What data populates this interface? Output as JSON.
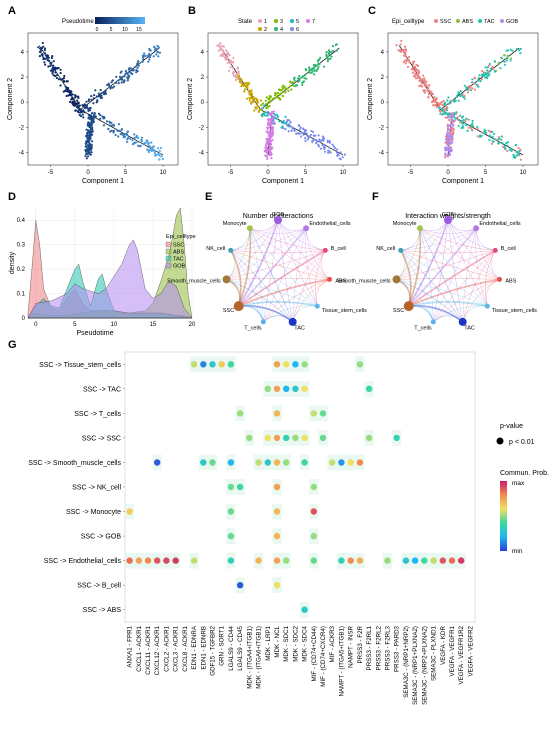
{
  "panel_labels": {
    "A": "A",
    "B": "B",
    "C": "C",
    "D": "D",
    "E": "E",
    "F": "F",
    "G": "G"
  },
  "colors": {
    "pseudotime_low": "#0a1f5c",
    "pseudotime_high": "#56b4f5",
    "state": [
      "#e9a3b1",
      "#c8a600",
      "#7fb800",
      "#2eb872",
      "#1fb6c3",
      "#7b8df0",
      "#d77ae8"
    ],
    "epi": {
      "SSC": "#f08080",
      "ABS": "#8fbc3a",
      "TAC": "#25c4b0",
      "GOB": "#b48af0"
    },
    "prob_scale": [
      "#2c3cd6",
      "#1fb6f2",
      "#3bd8a0",
      "#f0e060",
      "#f38a4e",
      "#c81d6e"
    ]
  },
  "trajectory_panels": [
    {
      "id": "A",
      "legend_title": "Pseudotime",
      "legend_ticks": [
        "0",
        "5",
        "10",
        "15"
      ],
      "xlabel": "Component 1",
      "ylabel": "Component 2",
      "xticks": [
        -5,
        0,
        5,
        10
      ],
      "yticks": [
        -4,
        -2,
        0,
        2,
        4
      ]
    },
    {
      "id": "B",
      "legend_title": "State",
      "legend_items": [
        "1",
        "3",
        "5",
        "7",
        "2",
        "4",
        "6"
      ],
      "xlabel": "Component 1",
      "ylabel": "Component 2",
      "xticks": [
        -5,
        0,
        5,
        10
      ],
      "yticks": [
        -4,
        -2,
        0,
        2,
        4
      ]
    },
    {
      "id": "C",
      "legend_title": "Epi_celltype",
      "legend_items": [
        "SSC",
        "ABS",
        "TAC",
        "GOB"
      ],
      "xlabel": "Component 1",
      "ylabel": "Component 2",
      "xticks": [
        -5,
        0,
        5,
        10
      ],
      "yticks": [
        -4,
        -2,
        0,
        2,
        4
      ]
    }
  ],
  "network_panels": [
    {
      "id": "E",
      "title": "Number of interactions"
    },
    {
      "id": "F",
      "title": "Interaction weights/strength"
    }
  ],
  "network_nodes": [
    "GOB",
    "Endothelial_cells",
    "B_cell",
    "ABS",
    "Tissue_stem_cells",
    "TAC",
    "T_cells",
    "SSC",
    "Smooth_muscle_cells",
    "NK_cell",
    "Monocyte"
  ],
  "dotplot": {
    "legend_title_p": "p-value",
    "legend_p_item": "p < 0.01",
    "legend_title_prob": "Commun. Prob.",
    "legend_max": "max",
    "legend_min": "min"
  },
  "chart_data": [
    {
      "type": "area",
      "title": "",
      "xlabel": "Pseudotime",
      "ylabel": "density",
      "xlim": [
        -1,
        20
      ],
      "ylim": [
        0,
        0.45
      ],
      "xticks": [
        0,
        5,
        10,
        15,
        20
      ],
      "yticks": [
        0,
        0.1,
        0.2,
        0.3,
        0.4
      ],
      "legend_title": "Epi_celltype",
      "legend_placement": "right",
      "series": [
        {
          "name": "SSC",
          "x": [
            -1,
            -0.5,
            0,
            0.5,
            1,
            2,
            3,
            4,
            5,
            6,
            7,
            8,
            9,
            10,
            12,
            14,
            16,
            18,
            19,
            20
          ],
          "y": [
            0.02,
            0.2,
            0.4,
            0.3,
            0.12,
            0.04,
            0.03,
            0.08,
            0.12,
            0.06,
            0.03,
            0.03,
            0.03,
            0.03,
            0.02,
            0.02,
            0.02,
            0.01,
            0.01,
            0
          ]
        },
        {
          "name": "ABS",
          "x": [
            -1,
            0,
            2,
            4,
            6,
            8,
            10,
            12,
            14,
            15,
            16,
            17,
            17.5,
            18,
            18.5,
            19,
            19.5,
            20
          ],
          "y": [
            0,
            0.02,
            0.01,
            0.01,
            0.02,
            0.03,
            0.03,
            0.02,
            0.03,
            0.06,
            0.15,
            0.25,
            0.33,
            0.42,
            0.45,
            0.3,
            0.1,
            0
          ]
        },
        {
          "name": "TAC",
          "x": [
            -1,
            0,
            1,
            2,
            3,
            4,
            5,
            5.5,
            6,
            7,
            8,
            8.5,
            9,
            10,
            11,
            12,
            14,
            16,
            18,
            20
          ],
          "y": [
            0,
            0.05,
            0.08,
            0.05,
            0.04,
            0.12,
            0.2,
            0.22,
            0.15,
            0.05,
            0.16,
            0.18,
            0.12,
            0.03,
            0.02,
            0.02,
            0.02,
            0.02,
            0.01,
            0
          ]
        },
        {
          "name": "GOB",
          "x": [
            -1,
            0,
            2,
            4,
            5,
            6,
            8,
            9,
            10,
            11,
            12,
            12.5,
            13,
            14,
            15,
            16,
            17,
            18,
            19,
            20
          ],
          "y": [
            0,
            0.06,
            0.07,
            0.1,
            0.14,
            0.12,
            0.1,
            0.12,
            0.17,
            0.22,
            0.3,
            0.32,
            0.28,
            0.12,
            0.08,
            0.1,
            0.15,
            0.13,
            0.04,
            0
          ]
        }
      ]
    },
    {
      "type": "scatter",
      "subtype": "dotplot",
      "title": "",
      "rows": [
        "SSC -> Tissue_stem_cells",
        "SSC -> TAC",
        "SSC -> T_cells",
        "SSC -> SSC",
        "SSC -> Smooth_muscle_cells",
        "SSC -> NK_cell",
        "SSC -> Monocyte",
        "SSC -> GOB",
        "SSC -> Endothelial_cells",
        "SSC -> B_cell",
        "SSC -> ABS"
      ],
      "columns": [
        "ANXA1 - FPR1",
        "CXCL1 - ACKR1",
        "CXCL11 - ACKR1",
        "CXCL12 - ACKR1",
        "CXCL2 - ACKR1",
        "CXCL3 - ACKR1",
        "CXCL8 - ACKR1",
        "EDN1 - EDNRA",
        "EDN1 - EDNRB",
        "GDF15 - TGFBR2",
        "GRN - SORT1",
        "LGALS9 - CD44",
        "LGALS9 - CD45",
        "MDK - (ITGA4+ITGB1)",
        "MDK - (ITGA6+ITGB1)",
        "MDK - LRP1",
        "MDK - NCL",
        "MDK - SDC1",
        "MDK - SDC2",
        "MDK - SDC4",
        "MIF - (CD74+CD44)",
        "MIF - (CD74+CXCR4)",
        "MIF - ACKR3",
        "NAMPT - (ITGA5+ITGB1)",
        "NAMPT - INSR",
        "PRSS3 - F2R",
        "PRSS3 - F2RL1",
        "PRSS3 - F2RL2",
        "PRSS3 - F2RL3",
        "PRSS3 - PARD3",
        "SEMA3C - (NRP1+NRP2)",
        "SEMA3C - (NRP1+PLXNA2)",
        "SEMA3C - (NRP2+PLXNA2)",
        "SEMA3C - PLXND1",
        "VEGFA - KDR",
        "VEGFA - VEGFR1",
        "VEGFA - VEGFR1R2",
        "VEGFA - VEGFR2"
      ],
      "prob_range": [
        "min",
        "max"
      ],
      "points": [
        {
          "row": 0,
          "col": 7,
          "prob": 0.55
        },
        {
          "row": 0,
          "col": 8,
          "prob": 0.12
        },
        {
          "row": 0,
          "col": 9,
          "prob": 0.3
        },
        {
          "row": 0,
          "col": 10,
          "prob": 0.65
        },
        {
          "row": 0,
          "col": 11,
          "prob": 0.4
        },
        {
          "row": 0,
          "col": 16,
          "prob": 0.75
        },
        {
          "row": 0,
          "col": 17,
          "prob": 0.6
        },
        {
          "row": 0,
          "col": 18,
          "prob": 0.2
        },
        {
          "row": 0,
          "col": 19,
          "prob": 0.5
        },
        {
          "row": 0,
          "col": 25,
          "prob": 0.5
        },
        {
          "row": 1,
          "col": 15,
          "prob": 0.5
        },
        {
          "row": 1,
          "col": 16,
          "prob": 0.75
        },
        {
          "row": 1,
          "col": 17,
          "prob": 0.2
        },
        {
          "row": 1,
          "col": 18,
          "prob": 0.3
        },
        {
          "row": 1,
          "col": 19,
          "prob": 0.6
        },
        {
          "row": 1,
          "col": 26,
          "prob": 0.4
        },
        {
          "row": 2,
          "col": 12,
          "prob": 0.5
        },
        {
          "row": 2,
          "col": 16,
          "prob": 0.7
        },
        {
          "row": 2,
          "col": 20,
          "prob": 0.55
        },
        {
          "row": 2,
          "col": 21,
          "prob": 0.45
        },
        {
          "row": 3,
          "col": 13,
          "prob": 0.5
        },
        {
          "row": 3,
          "col": 15,
          "prob": 0.6
        },
        {
          "row": 3,
          "col": 16,
          "prob": 0.75
        },
        {
          "row": 3,
          "col": 17,
          "prob": 0.35
        },
        {
          "row": 3,
          "col": 18,
          "prob": 0.5
        },
        {
          "row": 3,
          "col": 19,
          "prob": 0.6
        },
        {
          "row": 3,
          "col": 21,
          "prob": 0.45
        },
        {
          "row": 3,
          "col": 26,
          "prob": 0.5
        },
        {
          "row": 3,
          "col": 29,
          "prob": 0.35
        },
        {
          "row": 4,
          "col": 3,
          "prob": 0.05
        },
        {
          "row": 4,
          "col": 8,
          "prob": 0.3
        },
        {
          "row": 4,
          "col": 9,
          "prob": 0.45
        },
        {
          "row": 4,
          "col": 11,
          "prob": 0.2
        },
        {
          "row": 4,
          "col": 14,
          "prob": 0.55
        },
        {
          "row": 4,
          "col": 15,
          "prob": 0.3
        },
        {
          "row": 4,
          "col": 16,
          "prob": 0.7
        },
        {
          "row": 4,
          "col": 17,
          "prob": 0.5
        },
        {
          "row": 4,
          "col": 19,
          "prob": 0.4
        },
        {
          "row": 4,
          "col": 22,
          "prob": 0.55
        },
        {
          "row": 4,
          "col": 23,
          "prob": 0.15
        },
        {
          "row": 4,
          "col": 24,
          "prob": 0.6
        },
        {
          "row": 4,
          "col": 25,
          "prob": 0.8
        },
        {
          "row": 5,
          "col": 11,
          "prob": 0.45
        },
        {
          "row": 5,
          "col": 12,
          "prob": 0.4
        },
        {
          "row": 5,
          "col": 16,
          "prob": 0.75
        },
        {
          "row": 5,
          "col": 20,
          "prob": 0.5
        },
        {
          "row": 6,
          "col": 0,
          "prob": 0.65
        },
        {
          "row": 6,
          "col": 11,
          "prob": 0.45
        },
        {
          "row": 6,
          "col": 16,
          "prob": 0.7
        },
        {
          "row": 6,
          "col": 20,
          "prob": 0.9
        },
        {
          "row": 7,
          "col": 11,
          "prob": 0.45
        },
        {
          "row": 7,
          "col": 16,
          "prob": 0.7
        },
        {
          "row": 7,
          "col": 20,
          "prob": 0.5
        },
        {
          "row": 8,
          "col": 0,
          "prob": 0.85
        },
        {
          "row": 8,
          "col": 1,
          "prob": 0.75
        },
        {
          "row": 8,
          "col": 2,
          "prob": 0.8
        },
        {
          "row": 8,
          "col": 3,
          "prob": 0.9
        },
        {
          "row": 8,
          "col": 4,
          "prob": 0.92
        },
        {
          "row": 8,
          "col": 5,
          "prob": 0.95
        },
        {
          "row": 8,
          "col": 7,
          "prob": 0.55
        },
        {
          "row": 8,
          "col": 11,
          "prob": 0.35
        },
        {
          "row": 8,
          "col": 14,
          "prob": 0.7
        },
        {
          "row": 8,
          "col": 16,
          "prob": 0.75
        },
        {
          "row": 8,
          "col": 17,
          "prob": 0.5
        },
        {
          "row": 8,
          "col": 20,
          "prob": 0.45
        },
        {
          "row": 8,
          "col": 23,
          "prob": 0.35
        },
        {
          "row": 8,
          "col": 24,
          "prob": 0.8
        },
        {
          "row": 8,
          "col": 25,
          "prob": 0.72
        },
        {
          "row": 8,
          "col": 28,
          "prob": 0.5
        },
        {
          "row": 8,
          "col": 30,
          "prob": 0.3
        },
        {
          "row": 8,
          "col": 31,
          "prob": 0.2
        },
        {
          "row": 8,
          "col": 32,
          "prob": 0.4
        },
        {
          "row": 8,
          "col": 33,
          "prob": 0.55
        },
        {
          "row": 8,
          "col": 34,
          "prob": 0.9
        },
        {
          "row": 8,
          "col": 35,
          "prob": 0.85
        },
        {
          "row": 8,
          "col": 36,
          "prob": 0.95
        },
        {
          "row": 9,
          "col": 12,
          "prob": 0.05
        },
        {
          "row": 9,
          "col": 16,
          "prob": 0.6
        },
        {
          "row": 10,
          "col": 19,
          "prob": 0.3
        }
      ]
    }
  ]
}
